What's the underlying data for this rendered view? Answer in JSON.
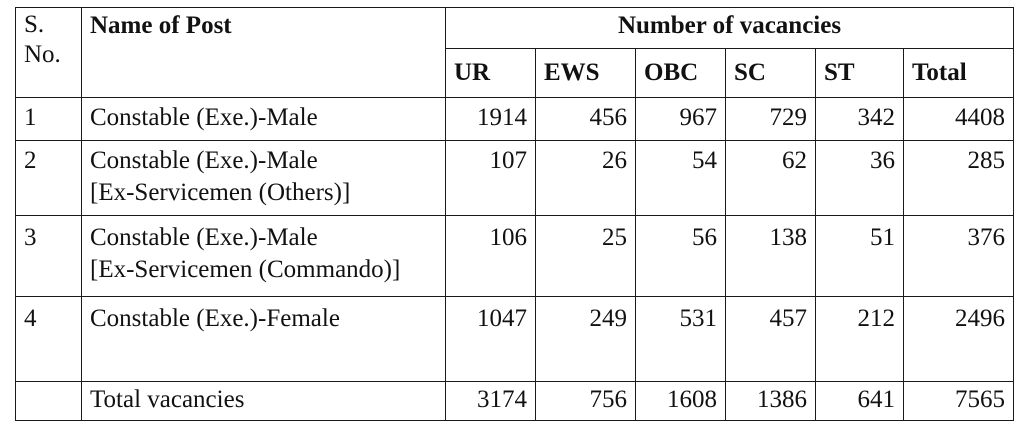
{
  "table": {
    "header": {
      "sno": "S. No.",
      "sno_line1": "S.",
      "sno_line2": "No.",
      "name": "Name of Post",
      "vacancies": "Number of vacancies",
      "columns": [
        "UR",
        "EWS",
        "OBC",
        "SC",
        "ST",
        "Total"
      ]
    },
    "rows": [
      {
        "sno": "1",
        "name_lines": [
          "Constable (Exe.)-Male"
        ],
        "values": [
          "1914",
          "456",
          "967",
          "729",
          "342",
          "4408"
        ]
      },
      {
        "sno": "2",
        "name_lines": [
          "Constable (Exe.)-Male",
          "[Ex-Servicemen (Others)]"
        ],
        "values": [
          "107",
          "26",
          "54",
          "62",
          "36",
          "285"
        ]
      },
      {
        "sno": "3",
        "name_lines": [
          "Constable (Exe.)-Male",
          "[Ex-Servicemen (Commando)]"
        ],
        "values": [
          "106",
          "25",
          "56",
          "138",
          "51",
          "376"
        ]
      },
      {
        "sno": "4",
        "name_lines": [
          "Constable (Exe.)-Female"
        ],
        "values": [
          "1047",
          "249",
          "531",
          "457",
          "212",
          "2496"
        ]
      }
    ],
    "total": {
      "label": "Total vacancies",
      "values": [
        "3174",
        "756",
        "1608",
        "1386",
        "641",
        "7565"
      ]
    }
  }
}
